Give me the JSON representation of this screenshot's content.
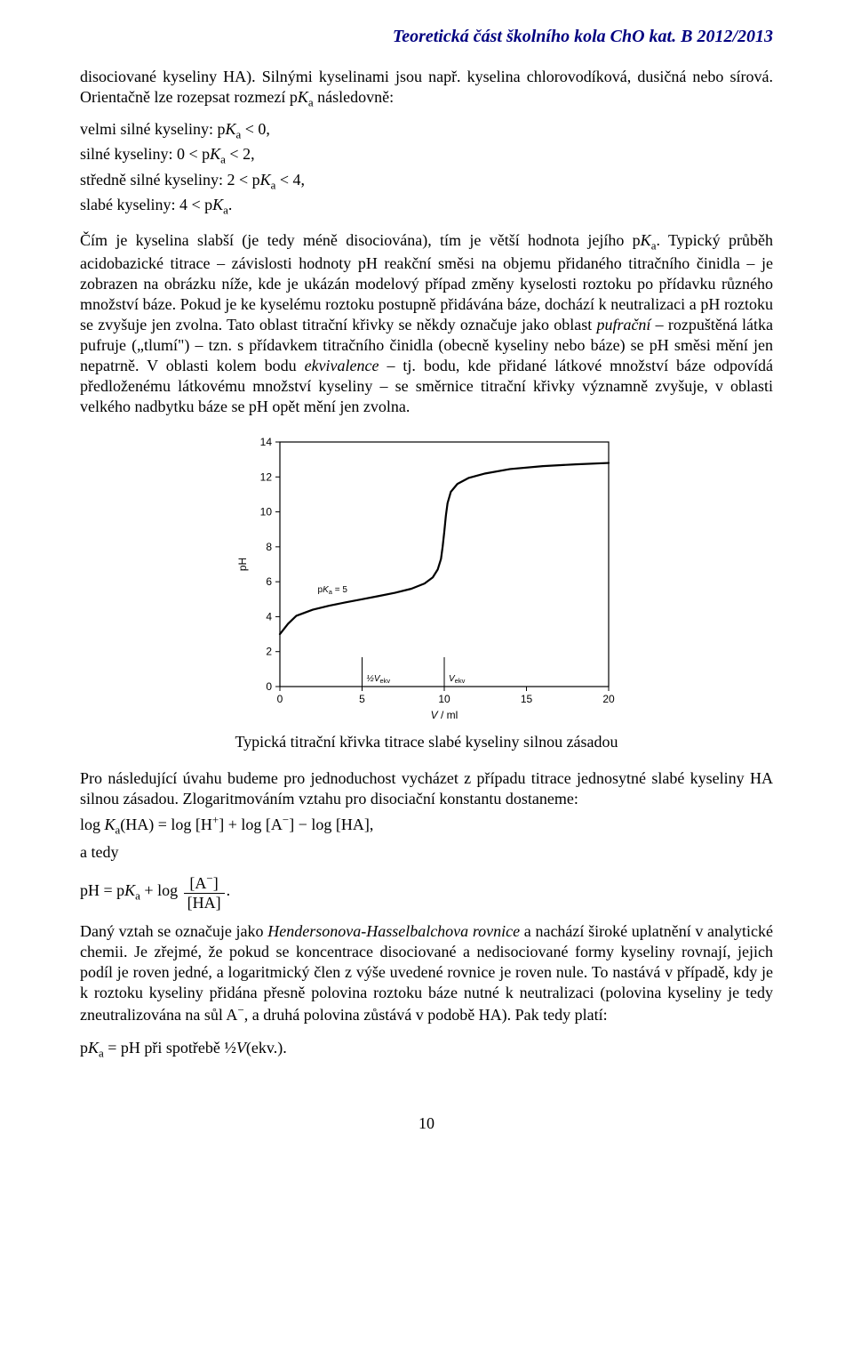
{
  "header": {
    "text": "Teoretická část školního kola ChO kat. B 2012/2013"
  },
  "para1": "disociované kyseliny HA). Silnými kyselinami jsou např. kyselina chlorovodíková, dusičná nebo sírová. Orientačně lze rozepsat rozmezí p",
  "para1_ital": "K",
  "para1_sub": "a",
  "para1_tail": " následovně:",
  "list": {
    "l1a": "velmi silné kyseliny: p",
    "l1b": " < 0,",
    "l2a": "silné kyseliny: 0 < p",
    "l2b": " < 2,",
    "l3a": "středně silné kyseliny: 2 < p",
    "l3b": " < 4,",
    "l4a": "slabé kyseliny: 4 < p",
    "l4b": "."
  },
  "Ka_ital": "K",
  "Ka_sub": "a",
  "para2_a": "Čím je kyselina slabší (je tedy méně disociována), tím je větší hodnota jejího p",
  "para2_b": ". Typický průběh acidobazické titrace – závislosti hodnoty pH reakční směsi na objemu přidaného titračního činidla – je zobrazen na obrázku níže, kde je ukázán modelový případ změny kyselosti roztoku po přídavku různého množství báze. Pokud je ke kyselému roztoku postupně přidávána báze, dochází k neutralizaci a pH roztoku se zvyšuje jen zvolna. Tato oblast titrační křivky se někdy označuje jako oblast ",
  "para2_ital1": "pufrační",
  "para2_c": " – rozpuštěná látka pufruje („tlumí\") – tzn. s přídavkem titračního činidla (obecně kyseliny nebo báze) se pH směsi mění jen nepatrně. V oblasti kolem bodu ",
  "para2_ital2": "ekvivalence",
  "para2_d": " – tj. bodu, kde přidané látkové množství báze odpovídá předloženému látkovému množství kyseliny – se směrnice titrační křivky významně zvyšuje, v oblasti velkého nadbytku báze se pH opět mění jen zvolna.",
  "chart": {
    "type": "line",
    "background_color": "#ffffff",
    "axis_color": "#000000",
    "grid_color": "#000000",
    "curve_color": "#000000",
    "font_family": "Arial, Helvetica, sans-serif",
    "label_fontsize": 12,
    "tick_fontsize": 12,
    "small_fontsize": 10,
    "xlim": [
      0,
      20
    ],
    "ylim": [
      0,
      14
    ],
    "xticks": [
      0,
      5,
      10,
      15,
      20
    ],
    "yticks": [
      0,
      2,
      4,
      6,
      8,
      10,
      12,
      14
    ],
    "xlabel_plain": " / ml",
    "xlabel_ital": "V",
    "ylabel": "pH",
    "annotations": {
      "pKa_label_a": "p",
      "pKa_label_b": "K",
      "pKa_label_c": "a",
      "pKa_label_d": " = 5",
      "halfVekv": "½V",
      "halfVekv_sub": "ekv",
      "Vekv": "V",
      "Vekv_sub": "ekv"
    },
    "curve_points": [
      [
        0.0,
        3.0
      ],
      [
        0.5,
        3.6
      ],
      [
        1.0,
        4.05
      ],
      [
        2.0,
        4.4
      ],
      [
        3.0,
        4.63
      ],
      [
        4.0,
        4.82
      ],
      [
        5.0,
        5.0
      ],
      [
        6.0,
        5.18
      ],
      [
        7.0,
        5.37
      ],
      [
        8.0,
        5.6
      ],
      [
        8.8,
        5.9
      ],
      [
        9.3,
        6.25
      ],
      [
        9.6,
        6.7
      ],
      [
        9.8,
        7.3
      ],
      [
        9.9,
        8.0
      ],
      [
        10.0,
        8.85
      ],
      [
        10.1,
        9.8
      ],
      [
        10.2,
        10.5
      ],
      [
        10.4,
        11.15
      ],
      [
        10.8,
        11.6
      ],
      [
        11.5,
        11.95
      ],
      [
        12.5,
        12.2
      ],
      [
        14.0,
        12.45
      ],
      [
        16.0,
        12.62
      ],
      [
        18.0,
        12.72
      ],
      [
        20.0,
        12.8
      ]
    ],
    "vlines": [
      5,
      10
    ],
    "curve_width": 2.2
  },
  "caption": "Typická titrační křivka titrace slabé kyseliny silnou zásadou",
  "para3_a": "Pro následující úvahu budeme pro jednoduchost vycházet z případu titrace jednosytné slabé kyseliny HA silnou zásadou. Zlogaritmováním vztahu pro disociační konstantu dostaneme:",
  "eqn1_a": "log ",
  "eqn1_b": "K",
  "eqn1_c": "a",
  "eqn1_d": "(HA) = log [H",
  "eqn1_sup": "+",
  "eqn1_e": "] + log [A",
  "eqn1_sup2": "−",
  "eqn1_f": "] − log [HA],",
  "a_tedy": "a tedy",
  "eqn2": {
    "lhs": "pH = p",
    "K": "K",
    "a": "a",
    "plus": " + log",
    "num_a": "[A",
    "num_sup": "−",
    "num_b": "]",
    "den": "[HA]",
    "tail": "."
  },
  "para4_a": "Daný vztah se označuje jako ",
  "para4_ital": "Hendersonova-Hasselbalchova rovnice",
  "para4_b": " a nachází široké uplatnění v analytické chemii. Je zřejmé, že pokud se koncentrace disociované a nedisociované formy kyseliny rovnají, jejich podíl je roven jedné, a logaritmický člen z výše uvedené rovnice je roven nule. To nastává v případě, kdy je k roztoku kyseliny přidána přesně polovina roztoku báze nutné k neutralizaci (polovina kyseliny je tedy zneutralizována na sůl A",
  "para4_sup": "−",
  "para4_c": ", a druhá polovina zůstává v podobě HA). Pak tedy platí:",
  "para5_a": "p",
  "para5_b": " = pH při spotřebě ½",
  "para5_ital": "V",
  "para5_c": "(ekv.).",
  "page_number": "10"
}
